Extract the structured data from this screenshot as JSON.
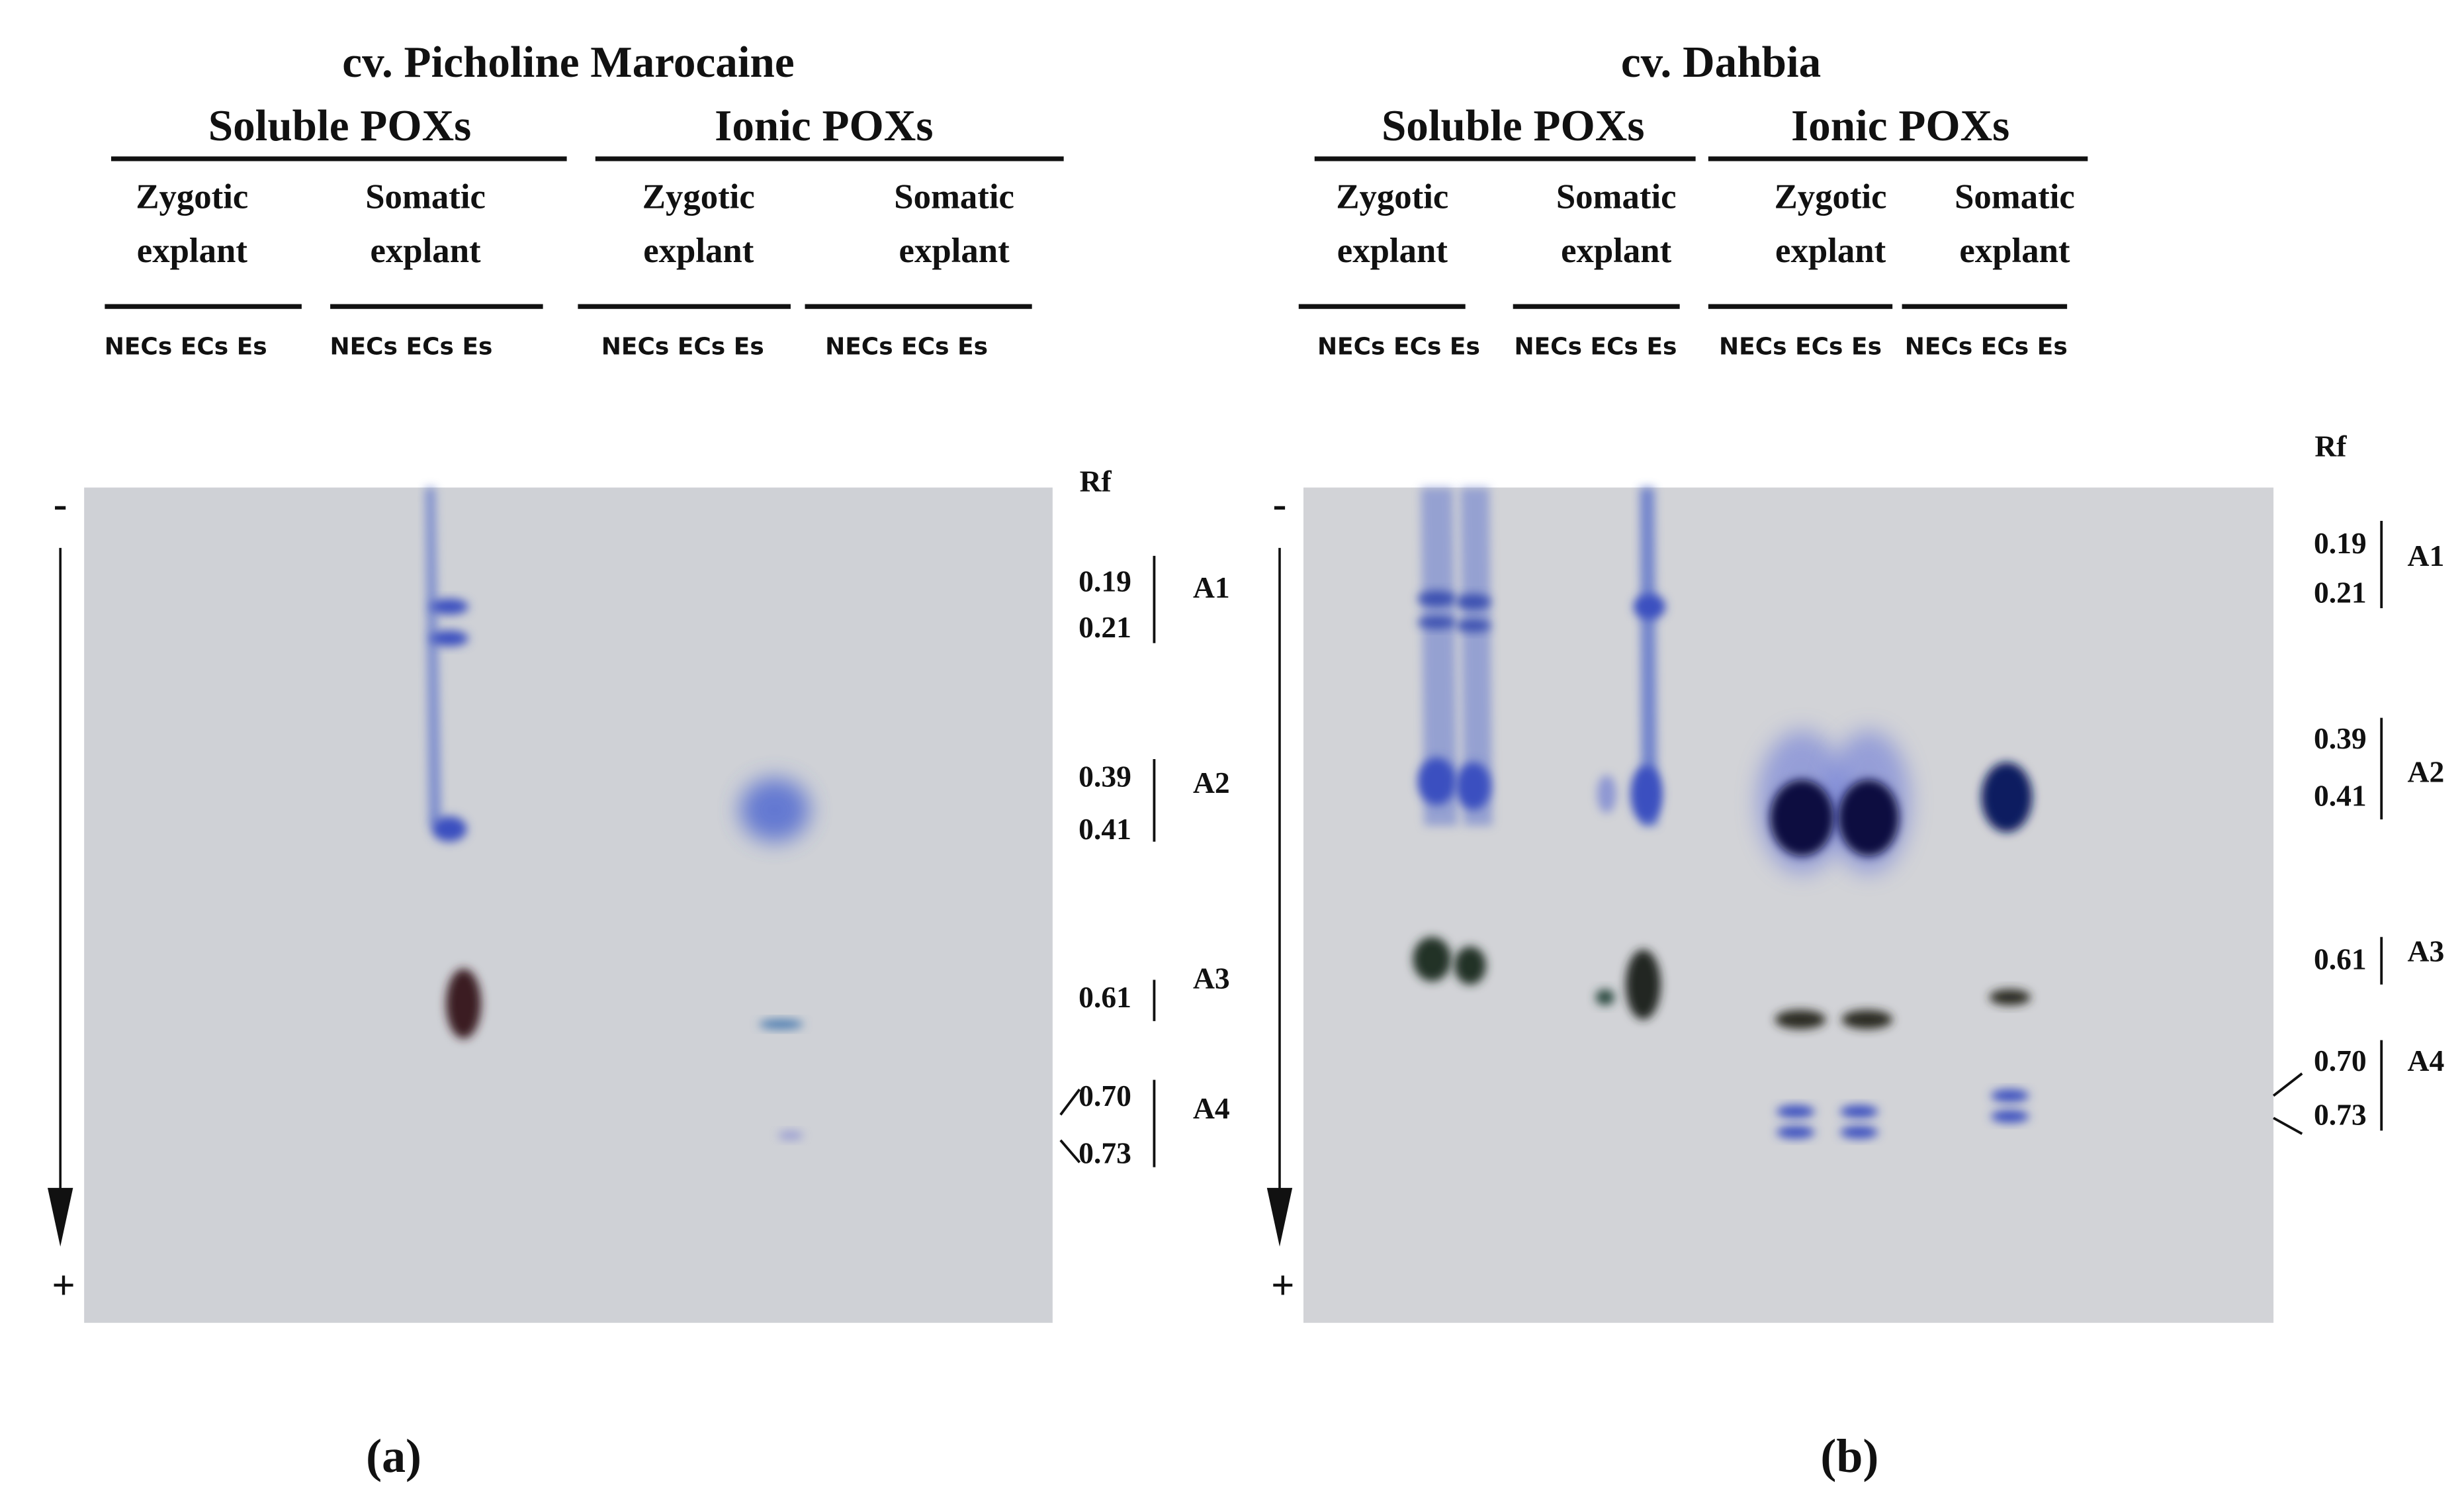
{
  "panels": [
    {
      "title": "cv. Picholine Marocaine",
      "groups": [
        {
          "name": "Soluble POXs",
          "subgroups": [
            {
              "label": [
                "Zygotic",
                "explant"
              ],
              "lanes": "NECs ECs Es"
            },
            {
              "label": [
                "Somatic",
                "explant"
              ],
              "lanes": "NECs ECs Es"
            }
          ]
        },
        {
          "name": "Ionic POXs",
          "subgroups": [
            {
              "label": [
                "Zygotic",
                "explant"
              ],
              "lanes": "NECs ECs Es"
            },
            {
              "label": [
                "Somatic",
                "explant"
              ],
              "lanes": "NECs ECs Es"
            }
          ]
        }
      ],
      "minus": "-",
      "plus": "+",
      "rf_header": "Rf",
      "rf_values": [
        "0.19",
        "0.21",
        "0.39",
        "0.41",
        "0.61",
        "0.70",
        "0.73"
      ],
      "bands": [
        "A1",
        "A2",
        "A3",
        "A4"
      ],
      "label": "(a)"
    },
    {
      "title": "cv. Dahbia",
      "groups": [
        {
          "name": "Soluble POXs",
          "subgroups": [
            {
              "label": [
                "Zygotic",
                "explant"
              ],
              "lanes": "NECs ECs Es"
            },
            {
              "label": [
                "Somatic",
                "explant"
              ],
              "lanes": "NECs ECs Es"
            }
          ]
        },
        {
          "name": "Ionic POXs",
          "subgroups": [
            {
              "label": [
                "Zygotic",
                "explant"
              ],
              "lanes": "NECs ECs Es"
            },
            {
              "label": [
                "Somatic",
                "explant"
              ],
              "lanes": "NECs ECs Es"
            }
          ]
        }
      ],
      "minus": "-",
      "plus": "+",
      "rf_header": "Rf",
      "rf_values": [
        "0.19",
        "0.21",
        "0.39",
        "0.41",
        "0.61",
        "0.70",
        "0.73"
      ],
      "bands": [
        "A1",
        "A2",
        "A3",
        "A4"
      ],
      "label": "(b)"
    }
  ]
}
